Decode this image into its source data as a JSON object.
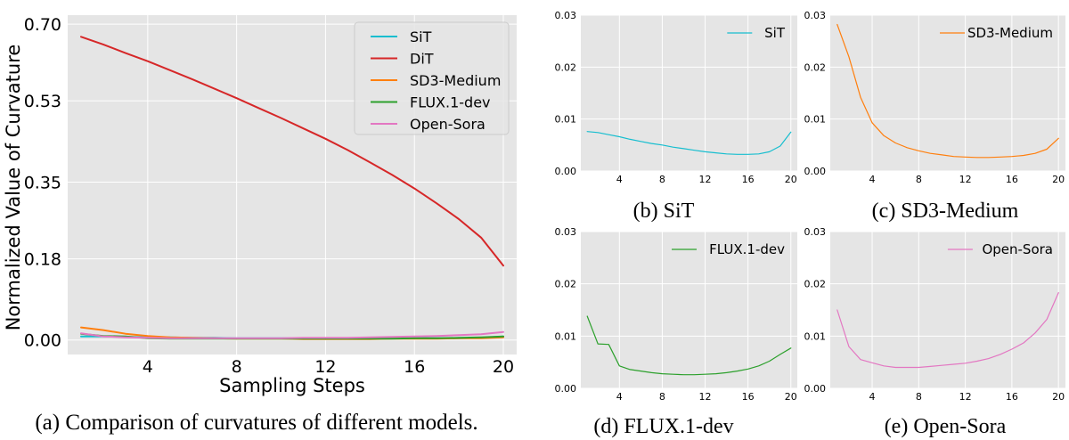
{
  "chart_data": [
    {
      "id": "a",
      "type": "line",
      "caption": "(a) Comparison of curvatures of different models.",
      "xlabel": "Sampling Steps",
      "ylabel": "Normalized Value of Curvature",
      "xlim": [
        0.4,
        20.6
      ],
      "ylim": [
        -0.032,
        0.72
      ],
      "xticks": [
        4,
        8,
        12,
        16,
        20
      ],
      "xtick_labels": [
        "4",
        "8",
        "12",
        "16",
        "20"
      ],
      "yticks": [
        0.0,
        0.18,
        0.35,
        0.53,
        0.7
      ],
      "ytick_labels": [
        "0.00",
        "0.18",
        "0.35",
        "0.53",
        "0.70"
      ],
      "legend_position": "top-right",
      "series": [
        {
          "name": "SiT",
          "color": "#17becf",
          "x": [
            1,
            2,
            3,
            4,
            5,
            6,
            7,
            8,
            9,
            10,
            11,
            12,
            13,
            14,
            15,
            16,
            17,
            18,
            19,
            20
          ],
          "y": [
            0.008,
            0.008,
            0.007,
            0.006,
            0.006,
            0.005,
            0.005,
            0.004,
            0.004,
            0.004,
            0.004,
            0.004,
            0.004,
            0.004,
            0.004,
            0.004,
            0.004,
            0.004,
            0.005,
            0.008
          ]
        },
        {
          "name": "DiT",
          "color": "#d62728",
          "x": [
            1,
            2,
            3,
            4,
            5,
            6,
            7,
            8,
            9,
            10,
            11,
            12,
            13,
            14,
            15,
            16,
            17,
            18,
            19,
            20
          ],
          "y": [
            0.672,
            0.655,
            0.636,
            0.618,
            0.598,
            0.578,
            0.557,
            0.536,
            0.514,
            0.492,
            0.469,
            0.446,
            0.421,
            0.394,
            0.366,
            0.336,
            0.303,
            0.268,
            0.227,
            0.165
          ]
        },
        {
          "name": "SD3-Medium",
          "color": "#ff7f0e",
          "x": [
            1,
            2,
            3,
            4,
            5,
            6,
            7,
            8,
            9,
            10,
            11,
            12,
            13,
            14,
            15,
            16,
            17,
            18,
            19,
            20
          ],
          "y": [
            0.028,
            0.022,
            0.014,
            0.009,
            0.006,
            0.005,
            0.004,
            0.003,
            0.003,
            0.003,
            0.002,
            0.002,
            0.002,
            0.002,
            0.003,
            0.003,
            0.003,
            0.004,
            0.004,
            0.006
          ]
        },
        {
          "name": "FLUX.1-dev",
          "color": "#2ca02c",
          "x": [
            1,
            2,
            3,
            4,
            5,
            6,
            7,
            8,
            9,
            10,
            11,
            12,
            13,
            14,
            15,
            16,
            17,
            18,
            19,
            20
          ],
          "y": [
            0.014,
            0.009,
            0.008,
            0.004,
            0.003,
            0.003,
            0.003,
            0.003,
            0.003,
            0.003,
            0.003,
            0.003,
            0.003,
            0.003,
            0.003,
            0.004,
            0.004,
            0.005,
            0.006,
            0.008
          ]
        },
        {
          "name": "Open-Sora",
          "color": "#e377c2",
          "x": [
            1,
            2,
            3,
            4,
            5,
            6,
            7,
            8,
            9,
            10,
            11,
            12,
            13,
            14,
            15,
            16,
            17,
            18,
            19,
            20
          ],
          "y": [
            0.015,
            0.008,
            0.006,
            0.005,
            0.004,
            0.004,
            0.004,
            0.004,
            0.004,
            0.004,
            0.005,
            0.005,
            0.005,
            0.006,
            0.007,
            0.008,
            0.009,
            0.011,
            0.013,
            0.018
          ]
        }
      ]
    },
    {
      "id": "b",
      "type": "line",
      "caption": "(b) SiT",
      "xlim": [
        0.4,
        20.6
      ],
      "ylim": [
        0.0,
        0.03
      ],
      "xticks": [
        4,
        8,
        12,
        16,
        20
      ],
      "xtick_labels": [
        "4",
        "8",
        "12",
        "16",
        "20"
      ],
      "yticks": [
        0.0,
        0.01,
        0.02,
        0.03
      ],
      "ytick_labels": [
        "0.00",
        "0.01",
        "0.02",
        "0.03"
      ],
      "legend_position": "top-right",
      "series": [
        {
          "name": "SiT",
          "color": "#17becf",
          "x": [
            1,
            2,
            3,
            4,
            5,
            6,
            7,
            8,
            9,
            10,
            11,
            12,
            13,
            14,
            15,
            16,
            17,
            18,
            19,
            20
          ],
          "y": [
            0.0076,
            0.0074,
            0.007,
            0.0066,
            0.0061,
            0.0057,
            0.0053,
            0.005,
            0.0046,
            0.0043,
            0.004,
            0.0037,
            0.0035,
            0.0033,
            0.0032,
            0.0032,
            0.0033,
            0.0037,
            0.0048,
            0.0075
          ]
        }
      ]
    },
    {
      "id": "c",
      "type": "line",
      "caption": "(c) SD3-Medium",
      "xlim": [
        0.4,
        20.6
      ],
      "ylim": [
        0.0,
        0.03
      ],
      "xticks": [
        4,
        8,
        12,
        16,
        20
      ],
      "xtick_labels": [
        "4",
        "8",
        "12",
        "16",
        "20"
      ],
      "yticks": [
        0.0,
        0.01,
        0.02,
        0.03
      ],
      "ytick_labels": [
        "0.00",
        "0.01",
        "0.02",
        "0.03"
      ],
      "legend_position": "top-right",
      "series": [
        {
          "name": "SD3-Medium",
          "color": "#ff7f0e",
          "x": [
            1,
            2,
            3,
            4,
            5,
            6,
            7,
            8,
            9,
            10,
            11,
            12,
            13,
            14,
            15,
            16,
            17,
            18,
            19,
            20
          ],
          "y": [
            0.0282,
            0.022,
            0.0142,
            0.0093,
            0.0068,
            0.0054,
            0.0045,
            0.0039,
            0.0034,
            0.0031,
            0.0028,
            0.0027,
            0.0026,
            0.0026,
            0.0027,
            0.0028,
            0.003,
            0.0034,
            0.0042,
            0.0063
          ]
        }
      ]
    },
    {
      "id": "d",
      "type": "line",
      "caption": "(d) FLUX.1-dev",
      "xlim": [
        0.4,
        20.6
      ],
      "ylim": [
        0.0,
        0.03
      ],
      "xticks": [
        4,
        8,
        12,
        16,
        20
      ],
      "xtick_labels": [
        "4",
        "8",
        "12",
        "16",
        "20"
      ],
      "yticks": [
        0.0,
        0.01,
        0.02,
        0.03
      ],
      "ytick_labels": [
        "0.00",
        "0.01",
        "0.02",
        "0.03"
      ],
      "legend_position": "top-right",
      "series": [
        {
          "name": "FLUX.1-dev",
          "color": "#2ca02c",
          "x": [
            1,
            2,
            3,
            4,
            5,
            6,
            7,
            8,
            9,
            10,
            11,
            12,
            13,
            14,
            15,
            16,
            17,
            18,
            19,
            20
          ],
          "y": [
            0.0138,
            0.0085,
            0.0084,
            0.0043,
            0.0036,
            0.0033,
            0.003,
            0.0028,
            0.0027,
            0.0026,
            0.0026,
            0.0027,
            0.0028,
            0.003,
            0.0033,
            0.0037,
            0.0043,
            0.0052,
            0.0065,
            0.0077
          ]
        }
      ]
    },
    {
      "id": "e",
      "type": "line",
      "caption": "(e) Open-Sora",
      "xlim": [
        0.4,
        20.6
      ],
      "ylim": [
        0.0,
        0.03
      ],
      "xticks": [
        4,
        8,
        12,
        16,
        20
      ],
      "xtick_labels": [
        "4",
        "8",
        "12",
        "16",
        "20"
      ],
      "yticks": [
        0.0,
        0.01,
        0.02,
        0.03
      ],
      "ytick_labels": [
        "0.00",
        "0.01",
        "0.02",
        "0.03"
      ],
      "legend_position": "top-right",
      "series": [
        {
          "name": "Open-Sora",
          "color": "#e377c2",
          "x": [
            1,
            2,
            3,
            4,
            5,
            6,
            7,
            8,
            9,
            10,
            11,
            12,
            13,
            14,
            15,
            16,
            17,
            18,
            19,
            20
          ],
          "y": [
            0.015,
            0.008,
            0.0055,
            0.0049,
            0.0043,
            0.004,
            0.004,
            0.004,
            0.0042,
            0.0044,
            0.0046,
            0.0048,
            0.0052,
            0.0057,
            0.0065,
            0.0075,
            0.0087,
            0.0106,
            0.0132,
            0.0183
          ]
        }
      ]
    }
  ]
}
